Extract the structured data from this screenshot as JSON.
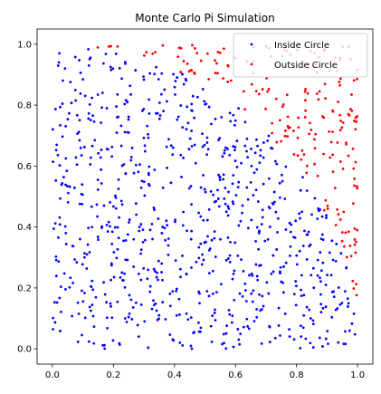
{
  "chart_data": {
    "type": "scatter",
    "title": "Monte Carlo Pi Simulation",
    "xlabel": "",
    "ylabel": "",
    "xlim": [
      -0.05,
      1.05
    ],
    "ylim": [
      -0.05,
      1.05
    ],
    "x_ticks": [
      "0.0",
      "0.2",
      "0.4",
      "0.6",
      "0.8",
      "1.0"
    ],
    "y_ticks": [
      "0.0",
      "0.2",
      "0.4",
      "0.6",
      "0.8",
      "1.0"
    ],
    "grid": false,
    "legend_position": "top-right",
    "total_points": 1000,
    "series": [
      {
        "name": "Inside Circle",
        "color": "#0000ff",
        "approx_count": 785,
        "rule": "x^2 + y^2 <= 1"
      },
      {
        "name": "Outside Circle",
        "color": "#ff0000",
        "approx_count": 215,
        "rule": "x^2 + y^2 > 1"
      }
    ]
  }
}
